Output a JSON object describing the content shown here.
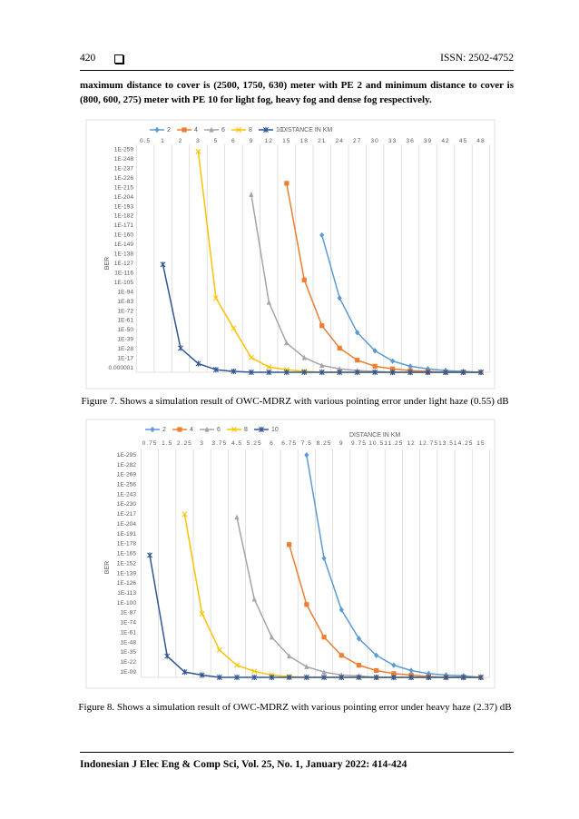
{
  "header": {
    "page": "420",
    "issn": "ISSN: 2502-4752"
  },
  "paragraph": "maximum distance to cover is (2500, 1750, 630) meter with PE 2 and minimum distance to cover is (800, 600, 275) meter with PE 10 for light fog, heavy fog and dense fog respectively.",
  "chart_data": [
    {
      "type": "line",
      "log_scale": true,
      "grid": true,
      "x_label": "DISTANCE IN KM",
      "y_label": "BER",
      "categories": [
        "0.5",
        "1",
        "2",
        "3",
        "5",
        "6",
        "9",
        "12",
        "15",
        "18",
        "21",
        "24",
        "27",
        "30",
        "33",
        "36",
        "39",
        "42",
        "45",
        "48"
      ],
      "ylim": [
        0.1,
        1e-263
      ],
      "yticks": [
        {
          "value": 1e-259,
          "label": "1E-259"
        },
        {
          "value": 1e-248,
          "label": "1E-248"
        },
        {
          "value": 1e-237,
          "label": "1E-237"
        },
        {
          "value": 1e-226,
          "label": "1E-226"
        },
        {
          "value": 1e-215,
          "label": "1E-215"
        },
        {
          "value": 1e-204,
          "label": "1E-204"
        },
        {
          "value": 1e-193,
          "label": "1E-193"
        },
        {
          "value": 1e-182,
          "label": "1E-182"
        },
        {
          "value": 1e-171,
          "label": "1E-171"
        },
        {
          "value": 1e-160,
          "label": "1E-160"
        },
        {
          "value": 1e-149,
          "label": "1E-149"
        },
        {
          "value": 1e-138,
          "label": "1E-138"
        },
        {
          "value": 1e-127,
          "label": "1E-127"
        },
        {
          "value": 1e-116,
          "label": "1E-116"
        },
        {
          "value": 1e-105,
          "label": "1E-105"
        },
        {
          "value": 1e-94,
          "label": "1E-94"
        },
        {
          "value": 1e-83,
          "label": "1E-83"
        },
        {
          "value": 1e-72,
          "label": "1E-72"
        },
        {
          "value": 1e-61,
          "label": "1E-61"
        },
        {
          "value": 1e-50,
          "label": "1E-50"
        },
        {
          "value": 1e-39,
          "label": "1E-39"
        },
        {
          "value": 1e-28,
          "label": "1E-28"
        },
        {
          "value": 1e-17,
          "label": "1E-17"
        },
        1e-06
      ],
      "series": [
        {
          "name": "2",
          "color": "#5b9bd5",
          "marker": "diamond",
          "values": [
            null,
            null,
            null,
            null,
            null,
            null,
            null,
            null,
            null,
            null,
            1e-160,
            1e-87,
            1e-47,
            1e-26,
            1e-14,
            1e-08,
            1e-05,
            0.001,
            0.01,
            0.1
          ]
        },
        {
          "name": "4",
          "color": "#ed7d31",
          "marker": "square",
          "values": [
            null,
            null,
            null,
            null,
            null,
            null,
            null,
            null,
            1e-220,
            1e-108,
            1e-55,
            1e-29,
            1e-15,
            1e-08,
            1e-05,
            0.001,
            0.01,
            0.1,
            0.1,
            0.1
          ]
        },
        {
          "name": "6",
          "color": "#a5a5a5",
          "marker": "triangle",
          "values": [
            null,
            null,
            null,
            null,
            null,
            null,
            1e-207,
            1e-82,
            1e-35,
            1e-18,
            1e-09,
            1e-05,
            0.001,
            0.01,
            0.1,
            0.1,
            0.1,
            0.1,
            0.1,
            0.1
          ]
        },
        {
          "name": "8",
          "color": "#ffc000",
          "marker": "x",
          "values": [
            null,
            null,
            null,
            1e-257,
            1e-87,
            1e-52,
            1e-18,
            1e-07,
            0.0001,
            0.01,
            0.1,
            0.1,
            0.1,
            0.1,
            0.1,
            0.1,
            0.1,
            0.1,
            0.1,
            0.1
          ]
        },
        {
          "name": "10",
          "color": "#2f5597",
          "marker": "star",
          "values": [
            null,
            1e-126,
            1e-29,
            1e-11,
            0.0001,
            0.01,
            0.1,
            0.1,
            0.1,
            0.1,
            0.1,
            0.1,
            0.1,
            0.1,
            0.1,
            0.1,
            0.1,
            0.1,
            0.1,
            0.1
          ]
        }
      ]
    },
    {
      "type": "line",
      "log_scale": true,
      "grid": true,
      "x_label": "DISTANCE IN KM",
      "y_label": "BER",
      "categories": [
        "0.75",
        "1.5",
        "2.25",
        "3",
        "3.75",
        "4.5",
        "5.25",
        "6",
        "6.75",
        "7.5",
        "8.25",
        "9",
        "9.75",
        "10.5",
        "11.25",
        "12",
        "12.75",
        "13.5",
        "14.25",
        "15"
      ],
      "ylim": [
        0.01,
        1e-300
      ],
      "yticks": [
        {
          "value": 1e-295,
          "label": "1E-295"
        },
        {
          "value": 1e-282,
          "label": "1E-282"
        },
        {
          "value": 1e-269,
          "label": "1E-269"
        },
        {
          "value": 1e-256,
          "label": "1E-256"
        },
        {
          "value": 1e-243,
          "label": "1E-243"
        },
        {
          "value": 1e-230,
          "label": "1E-230"
        },
        {
          "value": 1e-217,
          "label": "1E-217"
        },
        {
          "value": 1e-204,
          "label": "1E-204"
        },
        {
          "value": 1e-191,
          "label": "1E-191"
        },
        {
          "value": 1e-178,
          "label": "1E-178"
        },
        {
          "value": 1e-165,
          "label": "1E-165"
        },
        {
          "value": 1e-152,
          "label": "1E-152"
        },
        {
          "value": 1e-139,
          "label": "1E-139"
        },
        {
          "value": 1e-126,
          "label": "1E-126"
        },
        {
          "value": 1e-113,
          "label": "1E-113"
        },
        {
          "value": 1e-100,
          "label": "1E-100"
        },
        {
          "value": 1e-87,
          "label": "1E-87"
        },
        {
          "value": 1e-74,
          "label": "1E-74"
        },
        {
          "value": 1e-61,
          "label": "1E-61"
        },
        {
          "value": 1e-48,
          "label": "1E-48"
        },
        {
          "value": 1e-35,
          "label": "1E-35"
        },
        {
          "value": 1e-22,
          "label": "1E-22"
        },
        {
          "value": 1e-09,
          "label": "1E-09"
        }
      ],
      "series": [
        {
          "name": "2",
          "color": "#5b9bd5",
          "marker": "diamond",
          "values": [
            null,
            null,
            null,
            null,
            null,
            null,
            null,
            null,
            null,
            1e-295,
            1e-159,
            1e-91,
            1e-53,
            1e-31,
            1e-18,
            1e-11,
            1e-07,
            1e-05,
            0.0001,
            0.01
          ]
        },
        {
          "name": "4",
          "color": "#ed7d31",
          "marker": "square",
          "values": [
            null,
            null,
            null,
            null,
            null,
            null,
            null,
            null,
            1e-177,
            1e-98,
            1e-55,
            1e-31,
            1e-18,
            1e-11,
            1e-07,
            1e-05,
            0.001,
            0.01,
            0.01,
            0.01
          ]
        },
        {
          "name": "6",
          "color": "#a5a5a5",
          "marker": "triangle",
          "values": [
            null,
            null,
            null,
            null,
            null,
            1e-213,
            1e-105,
            1e-55,
            1e-30,
            1e-16,
            1e-09,
            1e-05,
            0.0001,
            0.01,
            0.01,
            0.01,
            0.01,
            0.01,
            0.01,
            0.01
          ]
        },
        {
          "name": "8",
          "color": "#ffc000",
          "marker": "x",
          "values": [
            null,
            null,
            1e-217,
            1e-86,
            1e-38,
            1e-18,
            1e-10,
            1e-05,
            0.001,
            0.01,
            0.01,
            0.01,
            0.01,
            0.01,
            0.01,
            0.01,
            0.01,
            0.01,
            0.01,
            0.01
          ]
        },
        {
          "name": "10",
          "color": "#2f5597",
          "marker": "star",
          "values": [
            1e-163,
            1e-30,
            1e-09,
            1e-05,
            0.01,
            0.01,
            0.01,
            0.01,
            0.01,
            0.01,
            0.01,
            0.01,
            0.01,
            0.01,
            0.01,
            0.01,
            0.01,
            0.01,
            0.01,
            0.01
          ]
        }
      ]
    }
  ],
  "captions": [
    "Figure 7. Shows a simulation result of OWC-MDRZ with various pointing error under light haze (0.55) dB",
    "Figure 8. Shows a simulation result of OWC-MDRZ with various pointing error under heavy haze (2.37) dB"
  ],
  "footer": "Indonesian J Elec Eng & Comp Sci, Vol. 25, No. 1, January 2022: 414-424"
}
